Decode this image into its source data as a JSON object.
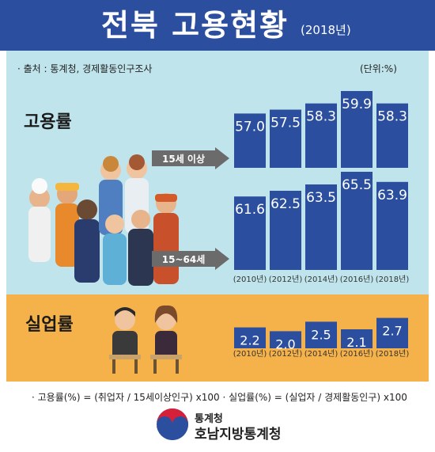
{
  "header": {
    "title": "전북 고용현황",
    "year": "(2018년)"
  },
  "notes": {
    "source": "· 출처 : 통계청, 경제활동인구조사",
    "unit": "(단위:%)"
  },
  "sections": {
    "employment": "고용률",
    "unemployment": "실업률"
  },
  "footer": {
    "formula": "· 고용률(%) = (취업자 / 15세이상인구) x100  · 실업률(%) = (실업자 / 경제활동인구) x100",
    "org_top": "통계청",
    "org_bottom": "호남지방통계청"
  },
  "colors": {
    "bar": "#2b4f9e",
    "header": "#2b4f9e",
    "emp_bg": "#bfe4ec",
    "unemp_bg": "#f5b24a",
    "arrow": "#6b6b6b"
  },
  "chart_data": [
    {
      "type": "bar",
      "section": "고용률",
      "series": [
        {
          "name": "15세 이상",
          "values": [
            57.0,
            57.5,
            58.3,
            59.9,
            58.3
          ]
        }
      ],
      "categories": [
        "(2010년)",
        "(2012년)",
        "(2014년)",
        "(2016년)",
        "(2018년)"
      ],
      "show_category_labels": false
    },
    {
      "type": "bar",
      "section": "고용률",
      "series": [
        {
          "name": "15~64세",
          "values": [
            61.6,
            62.5,
            63.5,
            65.5,
            63.9
          ]
        }
      ],
      "categories": [
        "(2010년)",
        "(2012년)",
        "(2014년)",
        "(2016년)",
        "(2018년)"
      ],
      "show_category_labels": true
    },
    {
      "type": "bar",
      "section": "실업률",
      "series": [
        {
          "name": "",
          "values": [
            2.2,
            2.0,
            2.5,
            2.1,
            2.7
          ]
        }
      ],
      "categories": [
        "(2010년)",
        "(2012년)",
        "(2014년)",
        "(2016년)",
        "(2018년)"
      ],
      "show_category_labels": true
    }
  ]
}
